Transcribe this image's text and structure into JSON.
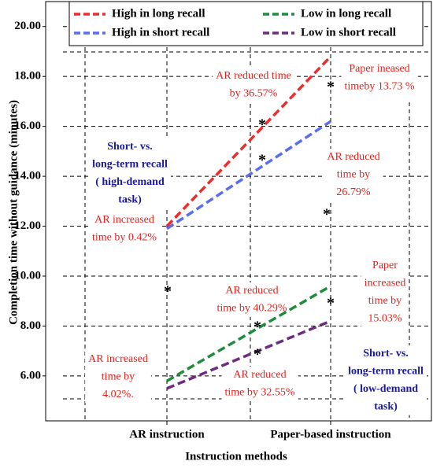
{
  "chart_data": {
    "type": "line",
    "y_label": "Completion time without guidance (minutes)",
    "x_label": "Instruction methods",
    "categories": [
      "AR instruction",
      "Paper-based instruction"
    ],
    "series": [
      {
        "name": "High in long recall",
        "color": "#ee2c2c",
        "values": [
          12.0,
          18.8
        ]
      },
      {
        "name": "Low in long recall",
        "color": "#1e8c3c",
        "values": [
          5.8,
          9.6
        ]
      },
      {
        "name": "High in short recall",
        "color": "#5a6cf0",
        "values": [
          11.9,
          16.2
        ]
      },
      {
        "name": "Low in short recall",
        "color": "#6e2c7e",
        "values": [
          5.5,
          8.2
        ]
      }
    ],
    "ylim": [
      4.2,
      21
    ],
    "yticks": [
      {
        "value": 6,
        "label": "6.00"
      },
      {
        "value": 8,
        "label": "8.00"
      },
      {
        "value": 10,
        "label": "10.00"
      },
      {
        "value": 12,
        "label": "12.00"
      },
      {
        "value": 14,
        "label": "14.00"
      },
      {
        "value": 16,
        "label": "16.00"
      },
      {
        "value": 18,
        "label": "18.00"
      },
      {
        "value": 20,
        "label": "20.00"
      }
    ],
    "grid": true,
    "legend": "top",
    "annotations": [
      {
        "lines": [
          "AR reduced time",
          "by 36.57%"
        ],
        "color": "red"
      },
      {
        "lines": [
          "Paper ineased",
          "timeby 13.73 %"
        ],
        "color": "red"
      },
      {
        "lines": [
          "AR reduced",
          "time by",
          "26.79%"
        ],
        "color": "red"
      },
      {
        "lines": [
          "AR increased",
          "time by 0.42%"
        ],
        "color": "red"
      },
      {
        "lines": [
          "Paper",
          "increased",
          "time by",
          "15.03%"
        ],
        "color": "red"
      },
      {
        "lines": [
          "AR reduced",
          "time by 40.29%"
        ],
        "color": "red"
      },
      {
        "lines": [
          "AR increased",
          "time by",
          "4.02%."
        ],
        "color": "red"
      },
      {
        "lines": [
          "AR reduced",
          "time by 32.55%"
        ],
        "color": "red"
      },
      {
        "lines": [
          "Short- vs.",
          "long-term recall",
          "( high-demand",
          "task)"
        ],
        "color": "blue"
      },
      {
        "lines": [
          "Short- vs.",
          "long-term recall",
          "( low-demand",
          "task)"
        ],
        "color": "blue"
      }
    ],
    "asterisks": [
      "*",
      "*",
      "*",
      "*",
      "*",
      "*",
      "*",
      "*"
    ]
  }
}
